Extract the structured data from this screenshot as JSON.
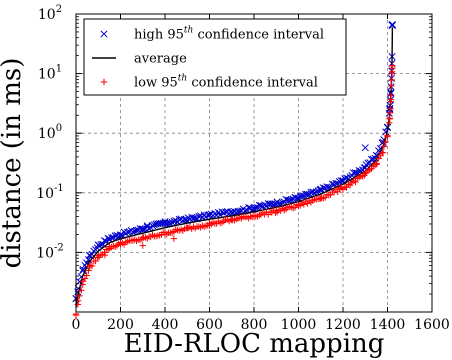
{
  "chart_data": {
    "type": "scatter",
    "xlabel": "EID-RLOC mapping",
    "ylabel": "distance (in ms)",
    "xlim": [
      0,
      1600
    ],
    "ylim": [
      0.001,
      100
    ],
    "yscale": "log",
    "grid": true,
    "legend_position": "top-left",
    "x_ticks": [
      "0",
      "200",
      "400",
      "600",
      "800",
      "1000",
      "1200",
      "1400",
      "1600"
    ],
    "y_ticks": [
      {
        "base": "10",
        "exp": "-2"
      },
      {
        "base": "10",
        "exp": "-1"
      },
      {
        "base": "10",
        "exp": "0"
      },
      {
        "base": "10",
        "exp": "1"
      },
      {
        "base": "10",
        "exp": "2"
      }
    ],
    "series": [
      {
        "name": "high 95th confidence interval",
        "legend_main": "high 95",
        "legend_sup": "th",
        "legend_rest": " confidence interval",
        "marker": "x",
        "color": "#0000cc",
        "curve": [
          [
            0,
            0.0016
          ],
          [
            10,
            0.0025
          ],
          [
            30,
            0.005
          ],
          [
            60,
            0.0085
          ],
          [
            100,
            0.013
          ],
          [
            150,
            0.017
          ],
          [
            200,
            0.02
          ],
          [
            300,
            0.025
          ],
          [
            400,
            0.031
          ],
          [
            500,
            0.036
          ],
          [
            600,
            0.042
          ],
          [
            700,
            0.048
          ],
          [
            800,
            0.056
          ],
          [
            900,
            0.067
          ],
          [
            1000,
            0.083
          ],
          [
            1100,
            0.11
          ],
          [
            1200,
            0.16
          ],
          [
            1300,
            0.27
          ],
          [
            1350,
            0.42
          ],
          [
            1380,
            0.7
          ],
          [
            1400,
            1.3
          ],
          [
            1410,
            2.5
          ],
          [
            1415,
            5.0
          ],
          [
            1420,
            14
          ],
          [
            1422,
            65
          ]
        ],
        "outliers": [
          [
            1300,
            0.57
          ],
          [
            320,
            0.028
          ],
          [
            1420,
            65
          ]
        ]
      },
      {
        "name": "average",
        "legend_main": "average",
        "legend_sup": "",
        "legend_rest": "",
        "marker": "line",
        "color": "#000000",
        "curve": [
          [
            0,
            0.0012
          ],
          [
            10,
            0.002
          ],
          [
            30,
            0.004
          ],
          [
            60,
            0.007
          ],
          [
            100,
            0.0105
          ],
          [
            150,
            0.0145
          ],
          [
            200,
            0.017
          ],
          [
            300,
            0.021
          ],
          [
            400,
            0.026
          ],
          [
            500,
            0.031
          ],
          [
            600,
            0.036
          ],
          [
            700,
            0.041
          ],
          [
            800,
            0.048
          ],
          [
            900,
            0.057
          ],
          [
            1000,
            0.071
          ],
          [
            1100,
            0.095
          ],
          [
            1200,
            0.14
          ],
          [
            1300,
            0.23
          ],
          [
            1350,
            0.36
          ],
          [
            1380,
            0.6
          ],
          [
            1400,
            1.1
          ],
          [
            1410,
            2.1
          ],
          [
            1415,
            4.2
          ],
          [
            1420,
            12
          ],
          [
            1422,
            60
          ]
        ]
      },
      {
        "name": "low 95th confidence interval",
        "legend_main": "low 95",
        "legend_sup": "th",
        "legend_rest": " confidence interval",
        "marker": "+",
        "color": "#ff0000",
        "curve": [
          [
            0,
            0.0009
          ],
          [
            10,
            0.0015
          ],
          [
            30,
            0.003
          ],
          [
            60,
            0.0055
          ],
          [
            100,
            0.0085
          ],
          [
            150,
            0.012
          ],
          [
            200,
            0.014
          ],
          [
            300,
            0.017
          ],
          [
            400,
            0.021
          ],
          [
            500,
            0.025
          ],
          [
            600,
            0.03
          ],
          [
            700,
            0.035
          ],
          [
            800,
            0.041
          ],
          [
            900,
            0.049
          ],
          [
            1000,
            0.061
          ],
          [
            1100,
            0.082
          ],
          [
            1200,
            0.12
          ],
          [
            1300,
            0.2
          ],
          [
            1350,
            0.31
          ],
          [
            1380,
            0.5
          ],
          [
            1400,
            0.9
          ],
          [
            1410,
            1.7
          ],
          [
            1415,
            3.5
          ],
          [
            1420,
            10
          ],
          [
            1422,
            13
          ]
        ],
        "outliers": [
          [
            300,
            0.013
          ],
          [
            440,
            0.017
          ],
          [
            130,
            0.009
          ]
        ]
      }
    ]
  }
}
